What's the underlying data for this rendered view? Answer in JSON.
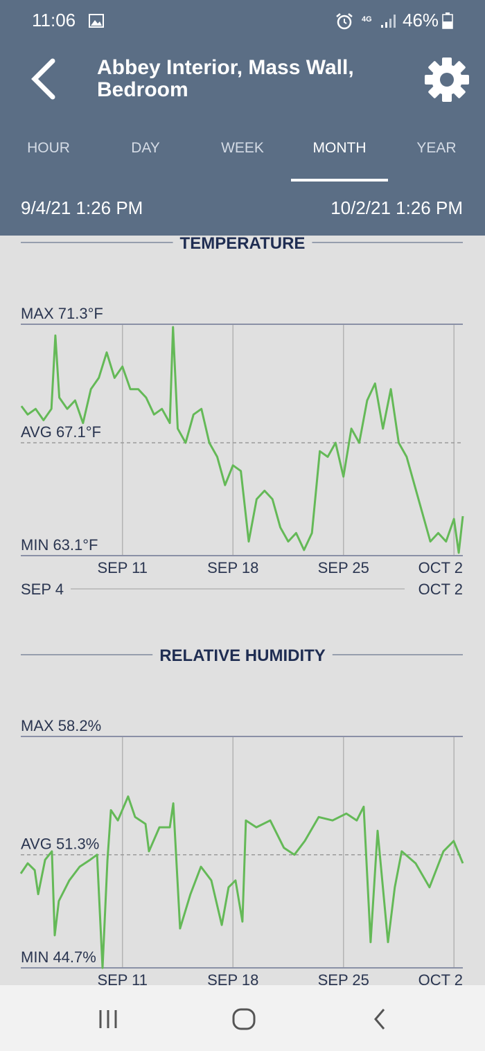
{
  "status_bar": {
    "time": "11:06",
    "network": "4G",
    "battery": "46%"
  },
  "header": {
    "title": "Abbey Interior, Mass Wall, Bedroom"
  },
  "tabs": {
    "items": [
      "HOUR",
      "DAY",
      "WEEK",
      "MONTH",
      "YEAR"
    ],
    "active": 3
  },
  "date_range": {
    "start": "9/4/21 1:26 PM",
    "end": "10/2/21 1:26 PM"
  },
  "chart_data": [
    {
      "type": "line",
      "title": "TEMPERATURE",
      "color": "#64b957",
      "range_start": "SEP 4",
      "range_end": "OCT 2",
      "xlim": [
        4.56,
        32.56
      ],
      "xticks": [
        {
          "value": 11,
          "label": "SEP 11"
        },
        {
          "value": 18,
          "label": "SEP 18"
        },
        {
          "value": 25,
          "label": "SEP 25"
        },
        {
          "value": 32,
          "label": "OCT 2"
        }
      ],
      "ylim": [
        63.1,
        71.3
      ],
      "yticks": [
        {
          "value": 63.1,
          "label": "MIN 63.1°F"
        },
        {
          "value": 67.1,
          "label": "AVG 67.1°F"
        },
        {
          "value": 71.3,
          "label": "MAX 71.3°F"
        }
      ],
      "x": [
        4.6,
        5,
        5.5,
        6,
        6.5,
        6.75,
        7,
        7.5,
        8,
        8.5,
        9,
        9.5,
        10,
        10.5,
        11,
        11.5,
        12,
        12.5,
        13,
        13.5,
        14,
        14.2,
        14.5,
        15,
        15.5,
        16,
        16.5,
        17,
        17.5,
        18,
        18.5,
        19,
        19.5,
        20,
        20.5,
        21,
        21.5,
        22,
        22.5,
        23,
        23.5,
        24,
        24.5,
        25,
        25.5,
        26,
        26.5,
        27,
        27.5,
        28,
        28.5,
        29,
        29.5,
        30,
        30.5,
        31,
        31.5,
        32,
        32.3,
        32.56
      ],
      "values": [
        68.4,
        68.1,
        68.3,
        67.9,
        68.3,
        70.9,
        68.7,
        68.3,
        68.6,
        67.8,
        69.0,
        69.4,
        70.3,
        69.4,
        69.8,
        69.0,
        69.0,
        68.7,
        68.1,
        68.3,
        67.8,
        71.2,
        67.6,
        67.1,
        68.1,
        68.3,
        67.1,
        66.6,
        65.6,
        66.3,
        66.1,
        63.6,
        65.1,
        65.4,
        65.1,
        64.1,
        63.6,
        63.9,
        63.3,
        63.9,
        66.8,
        66.6,
        67.1,
        65.9,
        67.6,
        67.1,
        68.6,
        69.2,
        67.6,
        69.0,
        67.1,
        66.6,
        65.6,
        64.6,
        63.6,
        63.9,
        63.6,
        64.4,
        63.2,
        64.5
      ]
    },
    {
      "type": "line",
      "title": "RELATIVE HUMIDITY",
      "color": "#64b957",
      "xlim": [
        4.56,
        32.56
      ],
      "xticks": [
        {
          "value": 11,
          "label": "SEP 11"
        },
        {
          "value": 18,
          "label": "SEP 18"
        },
        {
          "value": 25,
          "label": "SEP 25"
        },
        {
          "value": 32,
          "label": "OCT 2"
        }
      ],
      "ylim": [
        44.7,
        58.2
      ],
      "yticks": [
        {
          "value": 44.7,
          "label": "MIN 44.7%"
        },
        {
          "value": 51.3,
          "label": "AVG 51.3%"
        },
        {
          "value": 58.2,
          "label": "MAX 58.2%"
        }
      ],
      "x": [
        4.56,
        5.0,
        5.44,
        5.66,
        6.1,
        6.53,
        6.71,
        6.97,
        7.63,
        8.29,
        8.95,
        9.39,
        9.74,
        10.05,
        10.27,
        10.71,
        11.36,
        11.8,
        12.46,
        12.68,
        13.34,
        14.0,
        14.22,
        14.65,
        15.31,
        15.97,
        16.63,
        17.29,
        17.72,
        18.16,
        18.6,
        18.82,
        19.48,
        20.36,
        21.23,
        21.89,
        22.55,
        23.43,
        24.31,
        25.18,
        25.84,
        26.28,
        26.72,
        27.16,
        27.82,
        28.25,
        28.69,
        29.57,
        30.45,
        31.33,
        31.98,
        32.56
      ],
      "values": [
        50.2,
        50.8,
        50.4,
        49.0,
        51.0,
        51.5,
        46.6,
        48.6,
        49.8,
        50.6,
        51.0,
        51.3,
        44.7,
        51.0,
        53.9,
        53.3,
        54.7,
        53.5,
        53.1,
        51.5,
        52.9,
        52.9,
        54.3,
        47.0,
        49.0,
        50.6,
        49.8,
        47.2,
        49.4,
        49.8,
        47.4,
        53.3,
        52.9,
        53.3,
        51.7,
        51.3,
        52.1,
        53.5,
        53.3,
        53.7,
        53.3,
        54.1,
        46.2,
        52.7,
        46.2,
        49.4,
        51.5,
        50.8,
        49.4,
        51.5,
        52.1,
        50.8
      ]
    }
  ]
}
